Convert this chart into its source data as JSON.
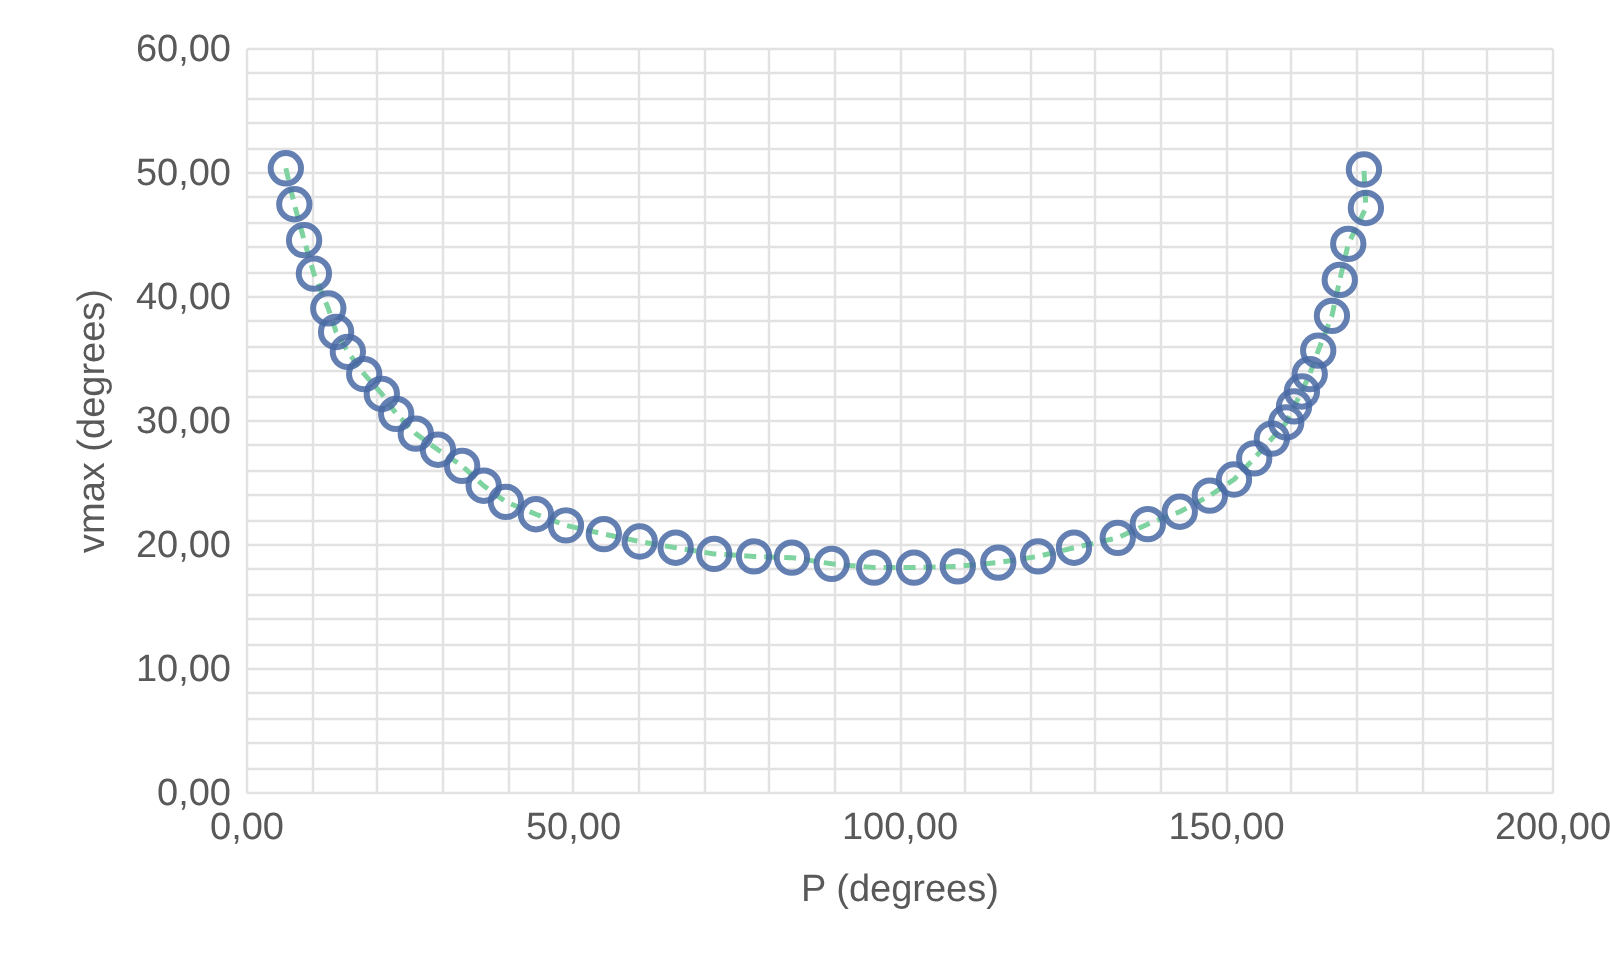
{
  "chart_data": {
    "type": "scatter",
    "xlabel": "P (degrees)",
    "ylabel": "vmax (degrees)",
    "series": [
      {
        "type": "line",
        "color": "#7fd3a0",
        "line_style": "dashed",
        "marker": "none",
        "x": [
          6.1,
          7.4,
          8.9,
          10.4,
          12.6,
          13.8,
          15.6,
          18.1,
          20.8,
          23,
          26,
          29.4,
          33.1,
          36.4,
          39.8,
          44.4,
          49,
          54.8,
          60.3,
          65.8,
          71.7,
          77.8,
          83.6,
          89.7,
          96.2,
          102.3,
          109,
          115.2,
          121.3,
          126.8,
          133.5,
          138.1,
          143,
          147.6,
          151.3,
          154.4,
          157.1,
          159.3,
          160.5,
          161.7,
          162.9,
          164.2,
          166.3,
          167.5,
          168.8,
          171.5,
          171.2
        ],
        "values": [
          50.3,
          47.4,
          44.5,
          41.8,
          39,
          37.1,
          35.5,
          33.7,
          32.1,
          30.5,
          28.9,
          27.6,
          26.3,
          24.7,
          23.4,
          22.4,
          21.5,
          20.8,
          20.2,
          19.7,
          19.2,
          19,
          18.9,
          18.4,
          18.1,
          18.1,
          18.2,
          18.5,
          19,
          19.7,
          20.5,
          21.6,
          22.6,
          23.9,
          25.2,
          26.9,
          28.5,
          29.8,
          31.1,
          32.3,
          33.7,
          35.6,
          38.4,
          41.3,
          44.2,
          47.1,
          50.2
        ]
      },
      {
        "color": "#4a6aa5",
        "marker": "circle",
        "x": [
          6.1,
          7.4,
          8.9,
          10.4,
          12.6,
          13.8,
          15.6,
          18.1,
          20.8,
          23,
          26,
          29.4,
          33.1,
          36.4,
          39.8,
          44.4,
          49,
          54.8,
          60.3,
          65.8,
          71.7,
          77.8,
          83.6,
          89.7,
          96.2,
          102.3,
          109,
          115.2,
          121.3,
          126.8,
          133.5,
          138.1,
          143,
          147.6,
          151.3,
          154.4,
          157.1,
          159.3,
          160.5,
          161.7,
          162.9,
          164.2,
          166.3,
          167.5,
          168.8,
          171.5,
          171.2
        ],
        "values": [
          50.3,
          47.4,
          44.5,
          41.8,
          39,
          37.1,
          35.5,
          33.7,
          32.1,
          30.5,
          28.9,
          27.6,
          26.3,
          24.7,
          23.4,
          22.4,
          21.5,
          20.8,
          20.2,
          19.7,
          19.2,
          19,
          18.9,
          18.4,
          18.1,
          18.1,
          18.2,
          18.5,
          19,
          19.7,
          20.5,
          21.6,
          22.6,
          23.9,
          25.2,
          26.9,
          28.5,
          29.8,
          31.1,
          32.3,
          33.7,
          35.6,
          38.4,
          41.3,
          44.2,
          47.1,
          50.2
        ]
      }
    ],
    "xlim": [
      0,
      200
    ],
    "xticks": [
      {
        "value": 0,
        "label": "0,00"
      },
      {
        "value": 10,
        "label": null
      },
      {
        "value": 20,
        "label": null
      },
      {
        "value": 30,
        "label": null
      },
      {
        "value": 40,
        "label": null
      },
      {
        "value": 50,
        "label": "50,00"
      },
      {
        "value": 60,
        "label": null
      },
      {
        "value": 70,
        "label": null
      },
      {
        "value": 80,
        "label": null
      },
      {
        "value": 90,
        "label": null
      },
      {
        "value": 100,
        "label": "100,00"
      },
      {
        "value": 110,
        "label": null
      },
      {
        "value": 120,
        "label": null
      },
      {
        "value": 130,
        "label": null
      },
      {
        "value": 140,
        "label": null
      },
      {
        "value": 150,
        "label": "150,00"
      },
      {
        "value": 160,
        "label": null
      },
      {
        "value": 170,
        "label": null
      },
      {
        "value": 180,
        "label": null
      },
      {
        "value": 190,
        "label": null
      },
      {
        "value": 200,
        "label": "200,00"
      }
    ],
    "ylim": [
      0,
      60
    ],
    "yticks": [
      {
        "value": 0,
        "label": "0,00"
      },
      {
        "value": 2,
        "label": null
      },
      {
        "value": 4,
        "label": null
      },
      {
        "value": 6,
        "label": null
      },
      {
        "value": 8,
        "label": null
      },
      {
        "value": 10,
        "label": "10,00"
      },
      {
        "value": 12,
        "label": null
      },
      {
        "value": 14,
        "label": null
      },
      {
        "value": 16,
        "label": null
      },
      {
        "value": 18,
        "label": null
      },
      {
        "value": 20,
        "label": "20,00"
      },
      {
        "value": 22,
        "label": null
      },
      {
        "value": 24,
        "label": null
      },
      {
        "value": 26,
        "label": null
      },
      {
        "value": 28,
        "label": null
      },
      {
        "value": 30,
        "label": "30,00"
      },
      {
        "value": 32,
        "label": null
      },
      {
        "value": 34,
        "label": null
      },
      {
        "value": 36,
        "label": null
      },
      {
        "value": 38,
        "label": null
      },
      {
        "value": 40,
        "label": "40,00"
      },
      {
        "value": 42,
        "label": null
      },
      {
        "value": 44,
        "label": null
      },
      {
        "value": 46,
        "label": null
      },
      {
        "value": 48,
        "label": null
      },
      {
        "value": 50,
        "label": "50,00"
      },
      {
        "value": 52,
        "label": null
      },
      {
        "value": 54,
        "label": null
      },
      {
        "value": 56,
        "label": null
      },
      {
        "value": 58,
        "label": null
      },
      {
        "value": 60,
        "label": "60,00"
      }
    ],
    "grid": true
  }
}
